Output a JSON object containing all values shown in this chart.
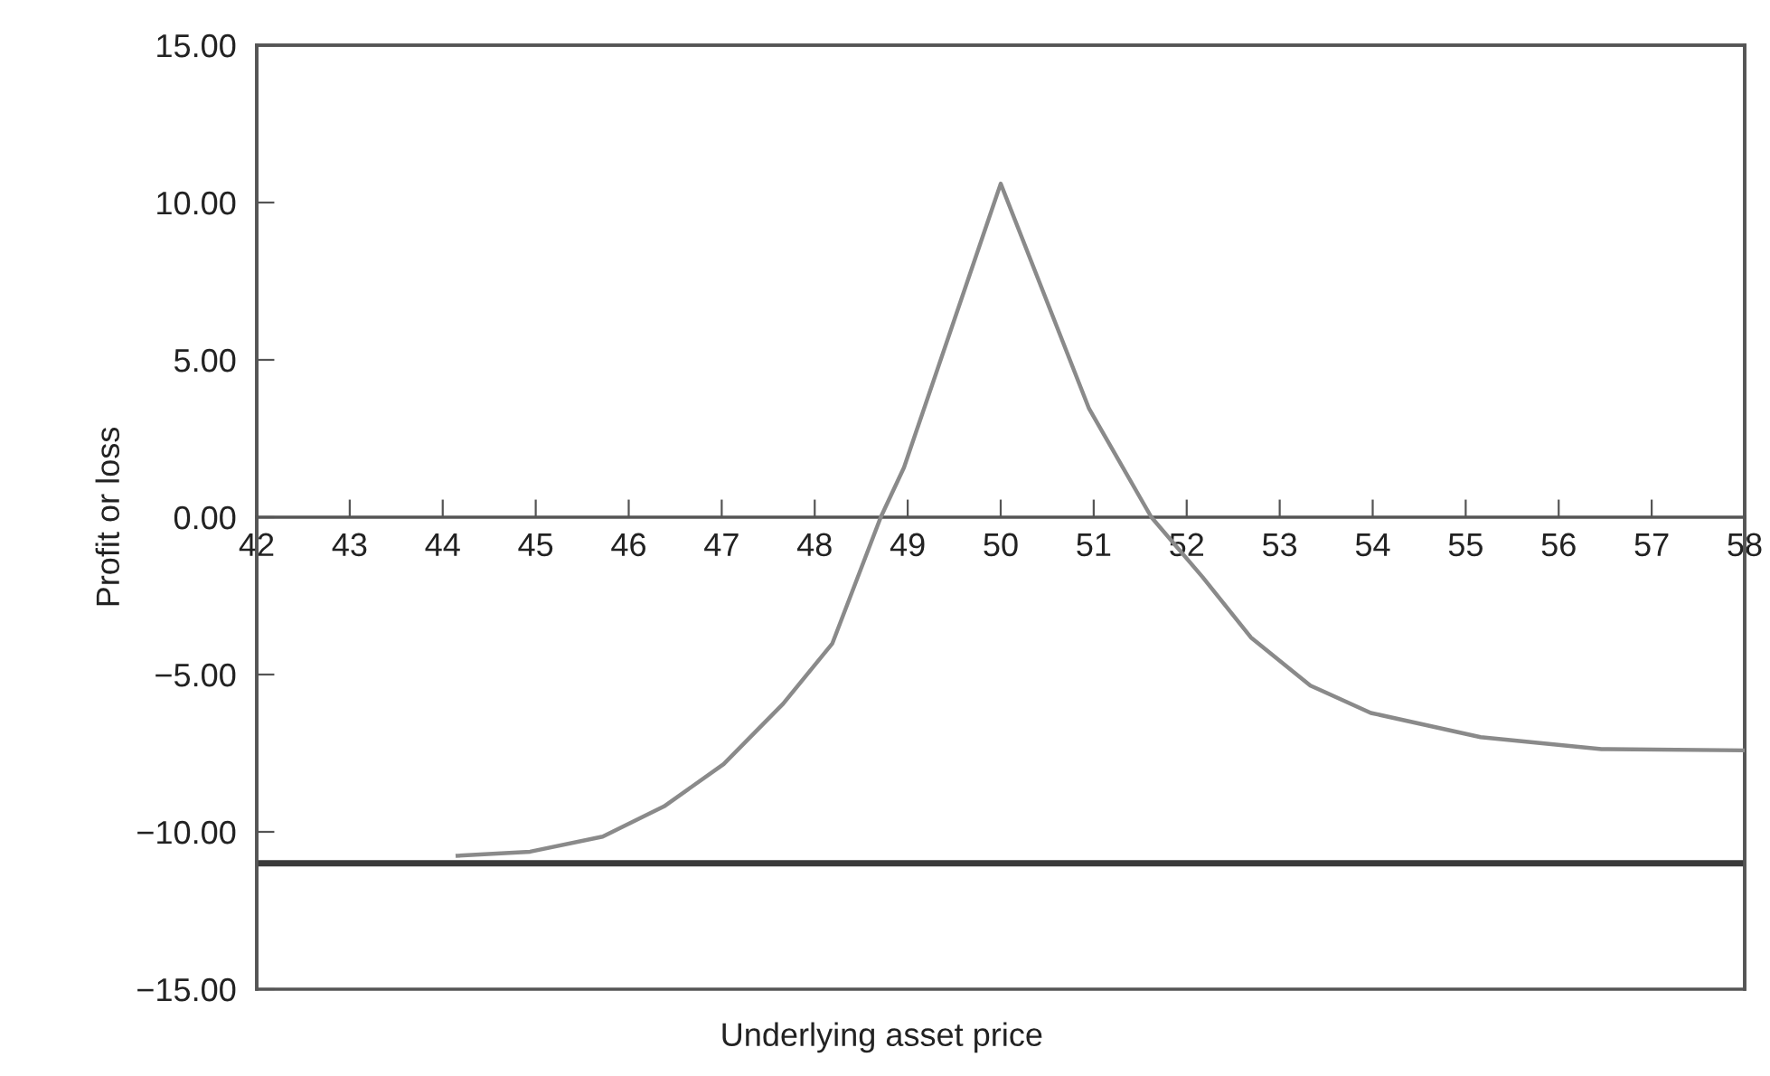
{
  "chart_data": {
    "type": "line",
    "xlabel": "Underlying asset price",
    "ylabel": "Profit or loss",
    "series": [
      {
        "color": "#8a8a8a",
        "x": [
          44.16,
          44.94,
          45.72,
          46.38,
          47.02,
          47.66,
          48.19,
          48.71,
          48.96,
          50.0,
          50.95,
          51.62,
          52.17,
          52.69,
          53.33,
          53.98,
          55.16,
          56.46,
          58.0
        ],
        "values": [
          -10.76,
          -10.63,
          -10.15,
          -9.19,
          -7.85,
          -5.93,
          -4.01,
          0.0,
          1.58,
          10.6,
          3.45,
          0.0,
          -1.9,
          -3.82,
          -5.35,
          -6.22,
          -6.99,
          -7.37,
          -7.41
        ]
      }
    ],
    "xlim": [
      42,
      58
    ],
    "xticks": [
      42,
      43,
      44,
      45,
      46,
      47,
      48,
      49,
      50,
      51,
      52,
      53,
      54,
      55,
      56,
      57,
      58
    ],
    "ylim": [
      -15,
      15
    ],
    "yticks": [
      {
        "value": 15,
        "label": "15.00"
      },
      {
        "value": 10,
        "label": "10.00"
      },
      {
        "value": 5,
        "label": "5.00"
      },
      {
        "value": 0,
        "label": "0.00"
      },
      {
        "value": -5,
        "label": "−5.00"
      },
      {
        "value": -10,
        "label": "−10.00"
      },
      {
        "value": -15,
        "label": "−15.00"
      }
    ],
    "ref_lines": [
      {
        "axis": "y",
        "value": -11,
        "color": "#3a3a3a"
      }
    ],
    "grid": false,
    "marker": "none",
    "line_style": "solid"
  }
}
